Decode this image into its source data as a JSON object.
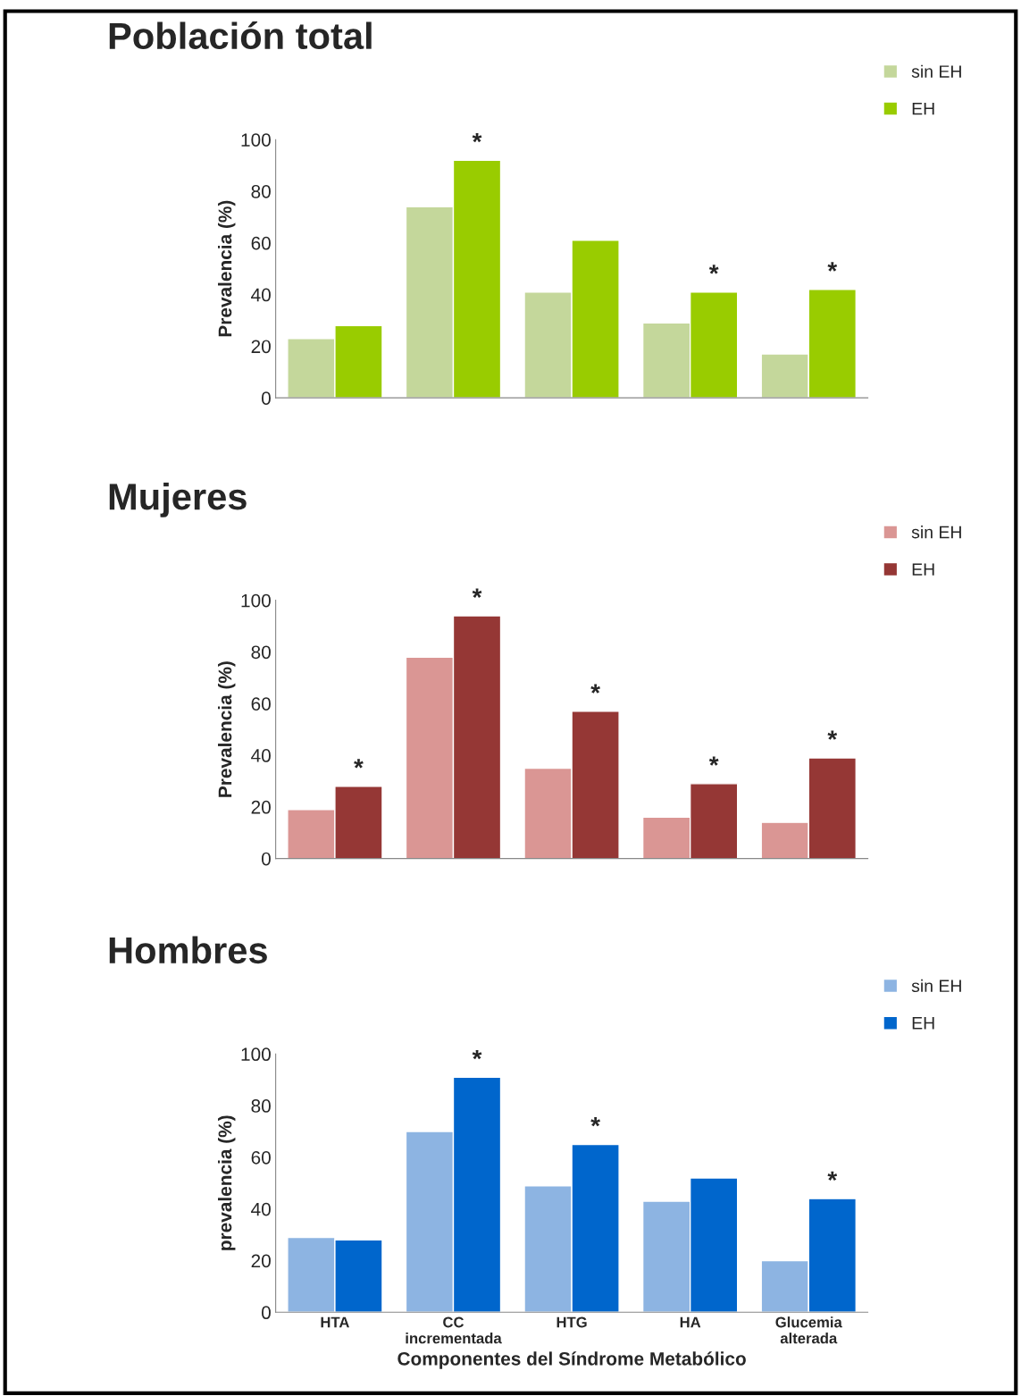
{
  "chart_data": [
    {
      "type": "bar",
      "title": "Población total",
      "ylabel": "Prevalencia (%)",
      "categories": [
        "HTA",
        "CC\nincrementada",
        "HTG",
        "HA",
        "Glucemia\nalterada"
      ],
      "tick_labels": "y",
      "ylim": [
        0,
        100
      ],
      "yticks": [
        0,
        20,
        40,
        60,
        80,
        100
      ],
      "grid": false,
      "legend": "top right",
      "series": [
        {
          "name": "sin EH",
          "color": "#c4d79b",
          "values": [
            23,
            74,
            41,
            29,
            17
          ]
        },
        {
          "name": "EH",
          "color": "#99cc00",
          "values": [
            28,
            92,
            61,
            41,
            42
          ]
        }
      ],
      "annotations": [
        {
          "text": "*",
          "x": "CC\nincrementada",
          "y": 92
        },
        {
          "text": "*",
          "x": "HA",
          "y": 41
        },
        {
          "text": "*",
          "x": "Glucemia\nalterada",
          "y": 42
        }
      ]
    },
    {
      "type": "bar",
      "title": "Mujeres",
      "ylabel": "Prevalencia (%)",
      "categories": [
        "HTA",
        "CC\nincrementada",
        "HTG",
        "HA",
        "Glucemia\nalterada"
      ],
      "tick_labels": "y",
      "ylim": [
        0,
        100
      ],
      "yticks": [
        0,
        20,
        40,
        60,
        80,
        100
      ],
      "grid": false,
      "legend": "top right",
      "series": [
        {
          "name": "sin EH",
          "color": "#da9694",
          "values": [
            19,
            78,
            35,
            16,
            14
          ]
        },
        {
          "name": "EH",
          "color": "#953735",
          "values": [
            28,
            94,
            57,
            29,
            39
          ]
        }
      ],
      "annotations": [
        {
          "text": "*",
          "x": "HTA",
          "y": 28
        },
        {
          "text": "*",
          "x": "CC\nincrementada",
          "y": 94
        },
        {
          "text": "*",
          "x": "HTG",
          "y": 57
        },
        {
          "text": "*",
          "x": "HA",
          "y": 29
        },
        {
          "text": "*",
          "x": "Glucemia\nalterada",
          "y": 39
        }
      ]
    },
    {
      "type": "bar",
      "title": "Hombres",
      "ylabel": "prevalencia (%)",
      "xlabel": "Componentes del Síndrome Metabólico",
      "categories": [
        "HTA",
        "CC\nincrementada",
        "HTG",
        "HA",
        "Glucemia\nalterada"
      ],
      "ylim": [
        0,
        100
      ],
      "yticks": [
        0,
        20,
        40,
        60,
        80,
        100
      ],
      "grid": false,
      "legend": "top right",
      "series": [
        {
          "name": "sin EH",
          "color": "#8db4e2",
          "values": [
            29,
            70,
            49,
            43,
            20
          ]
        },
        {
          "name": "EH",
          "color": "#0066cc",
          "values": [
            28,
            91,
            65,
            52,
            44
          ]
        }
      ],
      "annotations": [
        {
          "text": "*",
          "x": "CC\nincrementada",
          "y": 91
        },
        {
          "text": "*",
          "x": "HTG",
          "y": 65
        },
        {
          "text": "*",
          "x": "Glucemia\nalterada",
          "y": 44
        }
      ]
    }
  ]
}
